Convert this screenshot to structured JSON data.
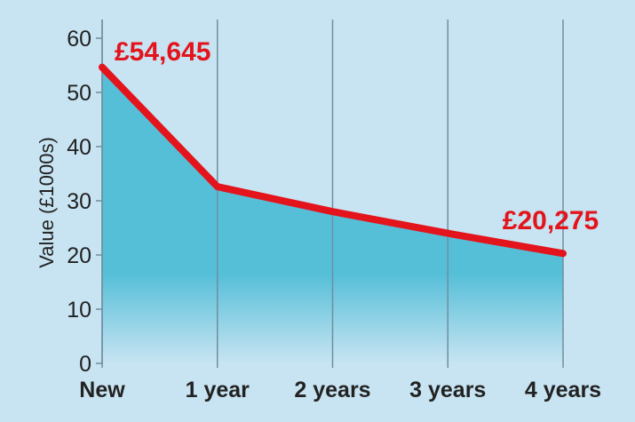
{
  "chart_data": {
    "type": "area",
    "title": "",
    "xlabel": "",
    "ylabel": "Value (£1000s)",
    "categories": [
      "New",
      "1 year",
      "2 years",
      "3 years",
      "4 years"
    ],
    "series": [
      {
        "name": "Value",
        "values": [
          54.645,
          32.6,
          28.0,
          24.0,
          20.275
        ],
        "color": "#e3141c"
      }
    ],
    "ylim": [
      0,
      60
    ],
    "yticks": [
      0,
      10,
      20,
      30,
      40,
      50,
      60
    ],
    "grid": "vertical",
    "annotations": [
      {
        "label": "£54,645",
        "category": "New"
      },
      {
        "label": "£20,275",
        "category": "4 years"
      }
    ],
    "colors": {
      "background": "#c8e4f2",
      "area": "#56bfd8",
      "line": "#e3141c",
      "gridline": "#6e8fa0"
    }
  }
}
